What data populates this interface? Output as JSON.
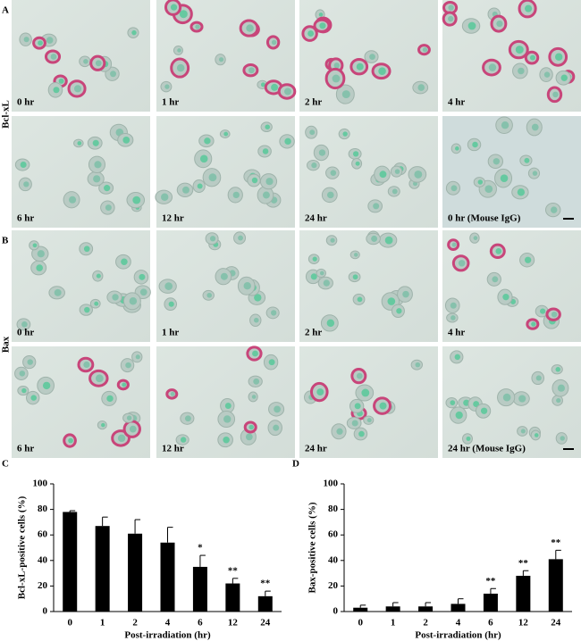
{
  "panels": [
    {
      "letter": "A",
      "label": "Bcl-xL",
      "images": [
        "0 hr",
        "1 hr",
        "2 hr",
        "4 hr",
        "6 hr",
        "12 hr",
        "24 hr",
        "0 hr (Mouse IgG)"
      ]
    },
    {
      "letter": "B",
      "label": "Bax",
      "images": [
        "0 hr",
        "1 hr",
        "2 hr",
        "4 hr",
        "6 hr",
        "12 hr",
        "24 hr",
        "24 hr (Mouse IgG)"
      ]
    }
  ],
  "chart_data": [
    {
      "type": "bar",
      "letter": "C",
      "y_label": "Bcl-xL-positive cells (%)",
      "x_label": "Post-irradiation (hr)",
      "categories": [
        "0",
        "1",
        "2",
        "4",
        "6",
        "12",
        "24"
      ],
      "values": [
        78,
        67,
        61,
        54,
        35,
        22,
        12
      ],
      "errors": [
        1,
        7,
        11,
        12,
        9,
        4,
        4
      ],
      "annotations": [
        {
          "category": "6",
          "text": "*"
        },
        {
          "category": "12",
          "text": "**"
        },
        {
          "category": "24",
          "text": "**"
        }
      ],
      "color": "#000000",
      "ylim": [
        0,
        100
      ],
      "yticks": [
        0,
        20,
        40,
        60,
        80,
        100
      ]
    },
    {
      "type": "bar",
      "letter": "D",
      "y_label": "Bax-positive cells (%)",
      "x_label": "Post-irradiation (hr)",
      "categories": [
        "0",
        "1",
        "2",
        "4",
        "6",
        "12",
        "24"
      ],
      "values": [
        3,
        4,
        4,
        6,
        14,
        28,
        41
      ],
      "errors": [
        2,
        3,
        3,
        4,
        4,
        4,
        7
      ],
      "annotations": [
        {
          "category": "6",
          "text": "**"
        },
        {
          "category": "12",
          "text": "**"
        },
        {
          "category": "24",
          "text": "**"
        }
      ],
      "color": "#000000",
      "ylim": [
        0,
        100
      ],
      "yticks": [
        0,
        20,
        40,
        60,
        80,
        100
      ]
    }
  ]
}
